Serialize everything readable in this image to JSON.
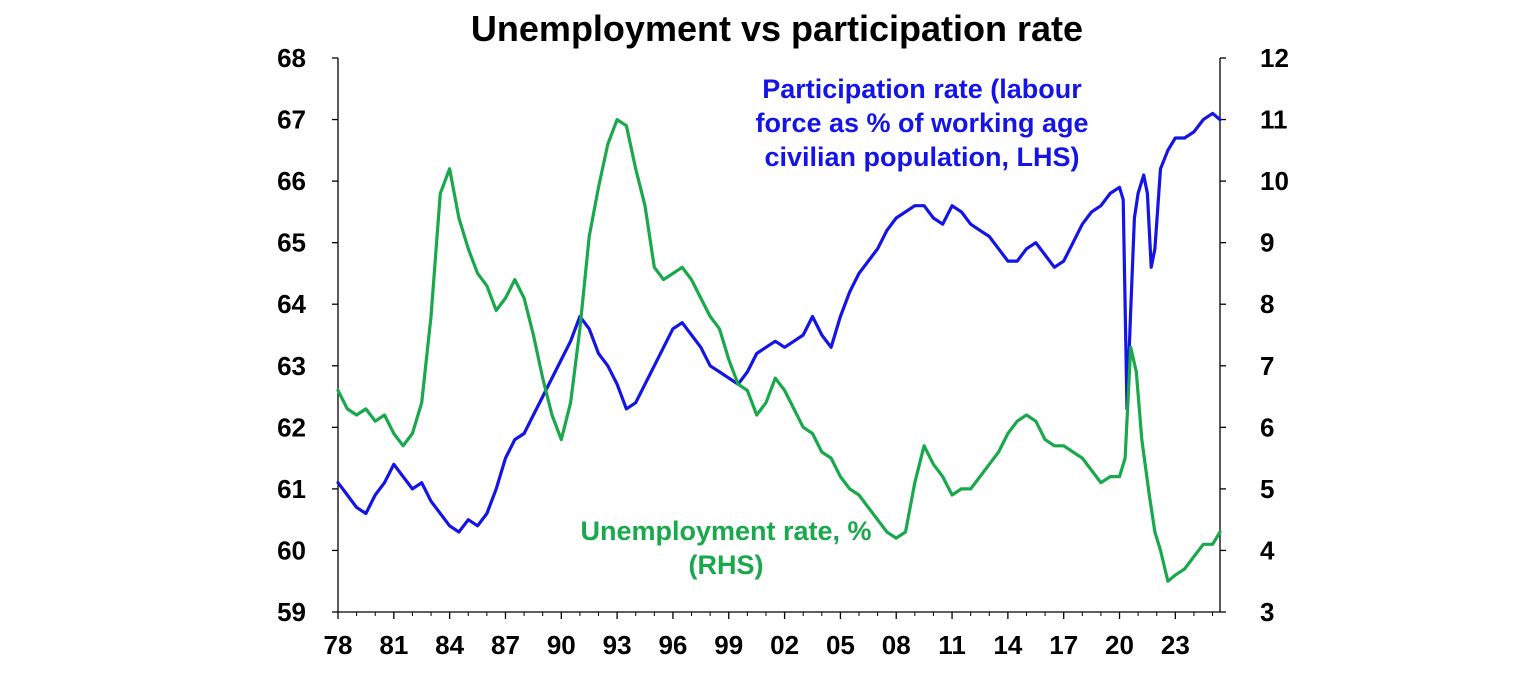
{
  "chart_data": {
    "type": "line",
    "title": "Unemployment vs participation rate",
    "x_tick_labels": [
      "78",
      "81",
      "84",
      "87",
      "90",
      "93",
      "96",
      "99",
      "02",
      "05",
      "08",
      "11",
      "14",
      "17",
      "20",
      "23"
    ],
    "x_range": [
      1978.0,
      2025.4
    ],
    "y_left": {
      "range": [
        59,
        68
      ],
      "ticks": [
        59,
        60,
        61,
        62,
        63,
        64,
        65,
        66,
        67,
        68
      ]
    },
    "y_right": {
      "range": [
        3,
        12
      ],
      "ticks": [
        3,
        4,
        5,
        6,
        7,
        8,
        9,
        10,
        11,
        12
      ]
    },
    "grid": false,
    "colors": {
      "participation": "#1414e6",
      "unemployment": "#19a84b",
      "axis": "#000000"
    },
    "series": [
      {
        "key": "participation",
        "axis": "left",
        "annotation": [
          "Participation rate (labour",
          "force as % of working age",
          "civilian population, LHS)"
        ],
        "points": [
          [
            1978.0,
            61.1
          ],
          [
            1978.5,
            60.9
          ],
          [
            1979.0,
            60.7
          ],
          [
            1979.5,
            60.6
          ],
          [
            1980.0,
            60.9
          ],
          [
            1980.5,
            61.1
          ],
          [
            1981.0,
            61.4
          ],
          [
            1981.5,
            61.2
          ],
          [
            1982.0,
            61.0
          ],
          [
            1982.5,
            61.1
          ],
          [
            1983.0,
            60.8
          ],
          [
            1983.5,
            60.6
          ],
          [
            1984.0,
            60.4
          ],
          [
            1984.5,
            60.3
          ],
          [
            1985.0,
            60.5
          ],
          [
            1985.5,
            60.4
          ],
          [
            1986.0,
            60.6
          ],
          [
            1986.5,
            61.0
          ],
          [
            1987.0,
            61.5
          ],
          [
            1987.5,
            61.8
          ],
          [
            1988.0,
            61.9
          ],
          [
            1988.5,
            62.2
          ],
          [
            1989.0,
            62.5
          ],
          [
            1989.5,
            62.8
          ],
          [
            1990.0,
            63.1
          ],
          [
            1990.5,
            63.4
          ],
          [
            1991.0,
            63.8
          ],
          [
            1991.5,
            63.6
          ],
          [
            1992.0,
            63.2
          ],
          [
            1992.5,
            63.0
          ],
          [
            1993.0,
            62.7
          ],
          [
            1993.5,
            62.3
          ],
          [
            1994.0,
            62.4
          ],
          [
            1994.5,
            62.7
          ],
          [
            1995.0,
            63.0
          ],
          [
            1995.5,
            63.3
          ],
          [
            1996.0,
            63.6
          ],
          [
            1996.5,
            63.7
          ],
          [
            1997.0,
            63.5
          ],
          [
            1997.5,
            63.3
          ],
          [
            1998.0,
            63.0
          ],
          [
            1998.5,
            62.9
          ],
          [
            1999.0,
            62.8
          ],
          [
            1999.5,
            62.7
          ],
          [
            2000.0,
            62.9
          ],
          [
            2000.5,
            63.2
          ],
          [
            2001.0,
            63.3
          ],
          [
            2001.5,
            63.4
          ],
          [
            2002.0,
            63.3
          ],
          [
            2002.5,
            63.4
          ],
          [
            2003.0,
            63.5
          ],
          [
            2003.5,
            63.8
          ],
          [
            2004.0,
            63.5
          ],
          [
            2004.5,
            63.3
          ],
          [
            2005.0,
            63.8
          ],
          [
            2005.5,
            64.2
          ],
          [
            2006.0,
            64.5
          ],
          [
            2006.5,
            64.7
          ],
          [
            2007.0,
            64.9
          ],
          [
            2007.5,
            65.2
          ],
          [
            2008.0,
            65.4
          ],
          [
            2008.5,
            65.5
          ],
          [
            2009.0,
            65.6
          ],
          [
            2009.5,
            65.6
          ],
          [
            2010.0,
            65.4
          ],
          [
            2010.5,
            65.3
          ],
          [
            2011.0,
            65.6
          ],
          [
            2011.5,
            65.5
          ],
          [
            2012.0,
            65.3
          ],
          [
            2012.5,
            65.2
          ],
          [
            2013.0,
            65.1
          ],
          [
            2013.5,
            64.9
          ],
          [
            2014.0,
            64.7
          ],
          [
            2014.5,
            64.7
          ],
          [
            2015.0,
            64.9
          ],
          [
            2015.5,
            65.0
          ],
          [
            2016.0,
            64.8
          ],
          [
            2016.5,
            64.6
          ],
          [
            2017.0,
            64.7
          ],
          [
            2017.5,
            65.0
          ],
          [
            2018.0,
            65.3
          ],
          [
            2018.5,
            65.5
          ],
          [
            2019.0,
            65.6
          ],
          [
            2019.5,
            65.8
          ],
          [
            2020.0,
            65.9
          ],
          [
            2020.2,
            65.7
          ],
          [
            2020.4,
            62.3
          ],
          [
            2020.6,
            63.9
          ],
          [
            2020.8,
            65.4
          ],
          [
            2021.0,
            65.8
          ],
          [
            2021.3,
            66.1
          ],
          [
            2021.5,
            65.8
          ],
          [
            2021.7,
            64.6
          ],
          [
            2021.9,
            64.9
          ],
          [
            2022.2,
            66.2
          ],
          [
            2022.6,
            66.5
          ],
          [
            2023.0,
            66.7
          ],
          [
            2023.5,
            66.7
          ],
          [
            2024.0,
            66.8
          ],
          [
            2024.5,
            67.0
          ],
          [
            2025.0,
            67.1
          ],
          [
            2025.4,
            67.0
          ]
        ]
      },
      {
        "key": "unemployment",
        "axis": "right",
        "annotation": [
          "Unemployment rate, %",
          "(RHS)"
        ],
        "points": [
          [
            1978.0,
            6.6
          ],
          [
            1978.5,
            6.3
          ],
          [
            1979.0,
            6.2
          ],
          [
            1979.5,
            6.3
          ],
          [
            1980.0,
            6.1
          ],
          [
            1980.5,
            6.2
          ],
          [
            1981.0,
            5.9
          ],
          [
            1981.5,
            5.7
          ],
          [
            1982.0,
            5.9
          ],
          [
            1982.5,
            6.4
          ],
          [
            1983.0,
            7.8
          ],
          [
            1983.5,
            9.8
          ],
          [
            1984.0,
            10.2
          ],
          [
            1984.5,
            9.4
          ],
          [
            1985.0,
            8.9
          ],
          [
            1985.5,
            8.5
          ],
          [
            1986.0,
            8.3
          ],
          [
            1986.5,
            7.9
          ],
          [
            1987.0,
            8.1
          ],
          [
            1987.5,
            8.4
          ],
          [
            1988.0,
            8.1
          ],
          [
            1988.5,
            7.5
          ],
          [
            1989.0,
            6.8
          ],
          [
            1989.5,
            6.2
          ],
          [
            1990.0,
            5.8
          ],
          [
            1990.5,
            6.4
          ],
          [
            1991.0,
            7.6
          ],
          [
            1991.5,
            9.1
          ],
          [
            1992.0,
            9.9
          ],
          [
            1992.5,
            10.6
          ],
          [
            1993.0,
            11.0
          ],
          [
            1993.5,
            10.9
          ],
          [
            1994.0,
            10.2
          ],
          [
            1994.5,
            9.6
          ],
          [
            1995.0,
            8.6
          ],
          [
            1995.5,
            8.4
          ],
          [
            1996.0,
            8.5
          ],
          [
            1996.5,
            8.6
          ],
          [
            1997.0,
            8.4
          ],
          [
            1997.5,
            8.1
          ],
          [
            1998.0,
            7.8
          ],
          [
            1998.5,
            7.6
          ],
          [
            1999.0,
            7.1
          ],
          [
            1999.5,
            6.7
          ],
          [
            2000.0,
            6.6
          ],
          [
            2000.5,
            6.2
          ],
          [
            2001.0,
            6.4
          ],
          [
            2001.5,
            6.8
          ],
          [
            2002.0,
            6.6
          ],
          [
            2002.5,
            6.3
          ],
          [
            2003.0,
            6.0
          ],
          [
            2003.5,
            5.9
          ],
          [
            2004.0,
            5.6
          ],
          [
            2004.5,
            5.5
          ],
          [
            2005.0,
            5.2
          ],
          [
            2005.5,
            5.0
          ],
          [
            2006.0,
            4.9
          ],
          [
            2006.5,
            4.7
          ],
          [
            2007.0,
            4.5
          ],
          [
            2007.5,
            4.3
          ],
          [
            2008.0,
            4.2
          ],
          [
            2008.5,
            4.3
          ],
          [
            2009.0,
            5.1
          ],
          [
            2009.5,
            5.7
          ],
          [
            2010.0,
            5.4
          ],
          [
            2010.5,
            5.2
          ],
          [
            2011.0,
            4.9
          ],
          [
            2011.5,
            5.0
          ],
          [
            2012.0,
            5.0
          ],
          [
            2012.5,
            5.2
          ],
          [
            2013.0,
            5.4
          ],
          [
            2013.5,
            5.6
          ],
          [
            2014.0,
            5.9
          ],
          [
            2014.5,
            6.1
          ],
          [
            2015.0,
            6.2
          ],
          [
            2015.5,
            6.1
          ],
          [
            2016.0,
            5.8
          ],
          [
            2016.5,
            5.7
          ],
          [
            2017.0,
            5.7
          ],
          [
            2017.5,
            5.6
          ],
          [
            2018.0,
            5.5
          ],
          [
            2018.5,
            5.3
          ],
          [
            2019.0,
            5.1
          ],
          [
            2019.5,
            5.2
          ],
          [
            2020.0,
            5.2
          ],
          [
            2020.3,
            5.5
          ],
          [
            2020.6,
            7.3
          ],
          [
            2020.9,
            6.9
          ],
          [
            2021.2,
            5.8
          ],
          [
            2021.6,
            4.9
          ],
          [
            2021.9,
            4.3
          ],
          [
            2022.2,
            4.0
          ],
          [
            2022.6,
            3.5
          ],
          [
            2023.0,
            3.6
          ],
          [
            2023.5,
            3.7
          ],
          [
            2024.0,
            3.9
          ],
          [
            2024.5,
            4.1
          ],
          [
            2025.0,
            4.1
          ],
          [
            2025.4,
            4.3
          ]
        ]
      }
    ]
  }
}
